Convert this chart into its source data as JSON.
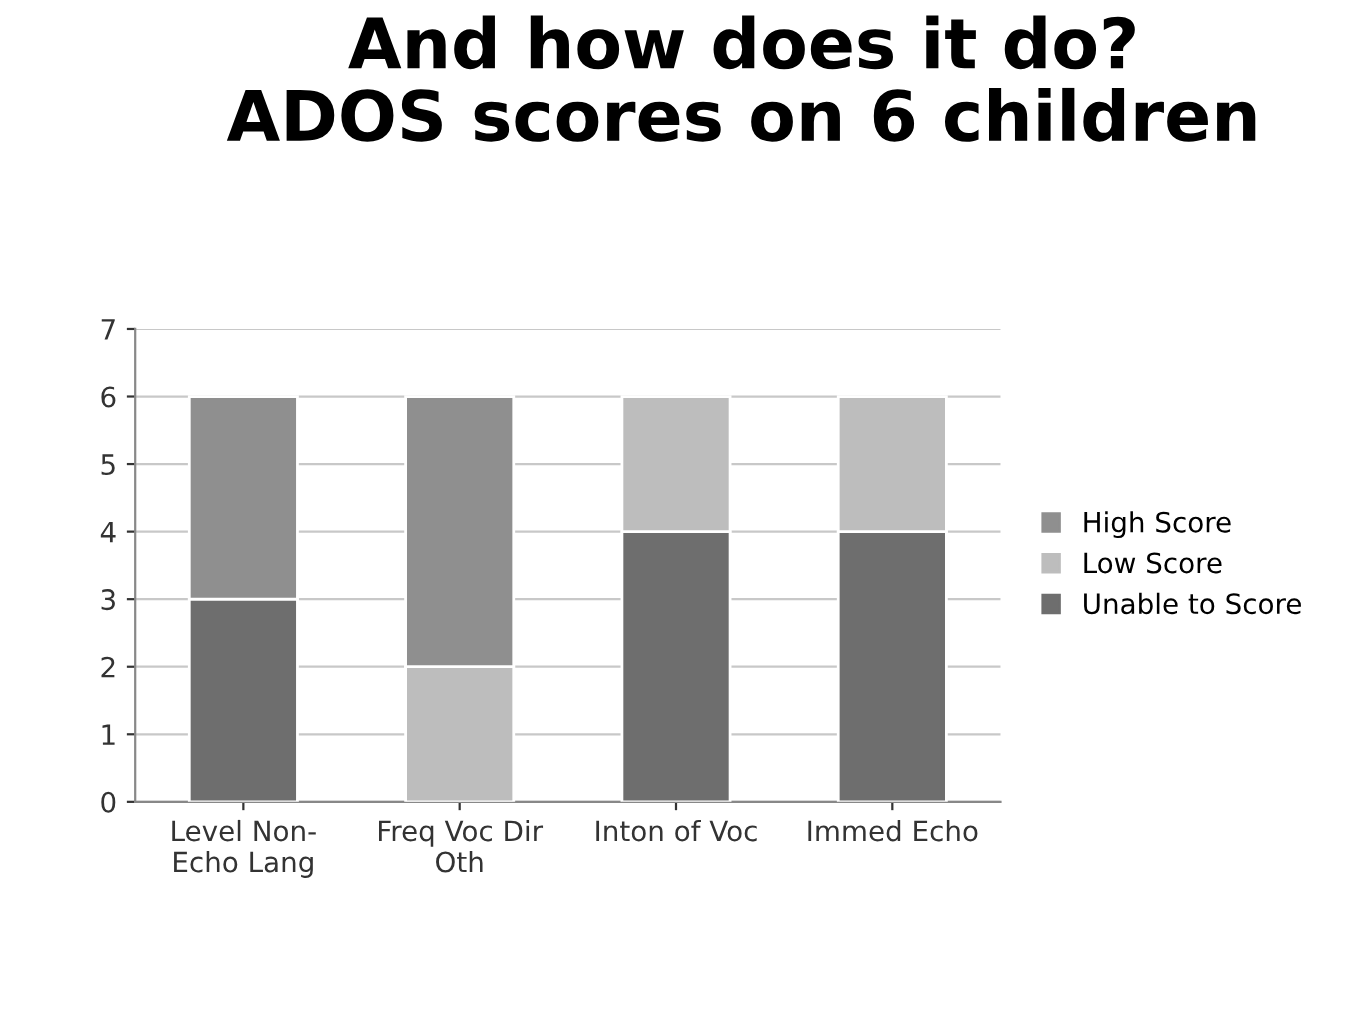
{
  "chart_data": {
    "type": "bar",
    "title": "And how does it do?\nADOS scores on 6 children",
    "categories": [
      "Level Non-\nEcho Lang",
      "Freq Voc Dir\nOth",
      "Inton of Voc",
      "Immed Echo"
    ],
    "stacked": true,
    "series": [
      {
        "name": "Unable to Score",
        "color": "#6e6e6e",
        "values": [
          3,
          0,
          4,
          4
        ]
      },
      {
        "name": "Low Score",
        "color": "#bdbdbd",
        "values": [
          0,
          2,
          2,
          2
        ]
      },
      {
        "name": "High Score",
        "color": "#8f8f8f",
        "values": [
          3,
          4,
          0,
          0
        ]
      }
    ],
    "ylim": [
      0,
      7
    ],
    "yticks": [
      0,
      1,
      2,
      3,
      4,
      5,
      6,
      7
    ],
    "grid": "y",
    "legend": "right"
  }
}
